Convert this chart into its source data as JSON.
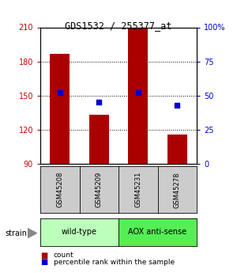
{
  "title": "GDS1532 / 255377_at",
  "samples": [
    "GSM45208",
    "GSM45209",
    "GSM45231",
    "GSM45278"
  ],
  "counts": [
    187,
    133,
    210,
    116
  ],
  "percentiles": [
    52,
    45,
    52,
    43
  ],
  "ylim_left": [
    90,
    210
  ],
  "ylim_right": [
    0,
    100
  ],
  "yticks_left": [
    90,
    120,
    150,
    180,
    210
  ],
  "yticks_right": [
    0,
    25,
    50,
    75,
    100
  ],
  "ytick_labels_right": [
    "0",
    "25",
    "50",
    "75",
    "100%"
  ],
  "bar_color": "#aa0000",
  "dot_color": "#0000cc",
  "groups": [
    {
      "label": "wild-type",
      "indices": [
        0,
        1
      ],
      "color": "#bbffbb"
    },
    {
      "label": "AOX anti-sense",
      "indices": [
        2,
        3
      ],
      "color": "#55ee55"
    }
  ],
  "strain_label": "strain",
  "legend_count_label": "count",
  "legend_pct_label": "percentile rank within the sample",
  "bar_width": 0.5,
  "background_color": "#ffffff",
  "sample_box_color": "#cccccc",
  "title_fontsize": 8.5,
  "tick_fontsize": 7,
  "sample_fontsize": 6,
  "group_fontsize": 7,
  "legend_fontsize": 6.5,
  "strain_fontsize": 7
}
